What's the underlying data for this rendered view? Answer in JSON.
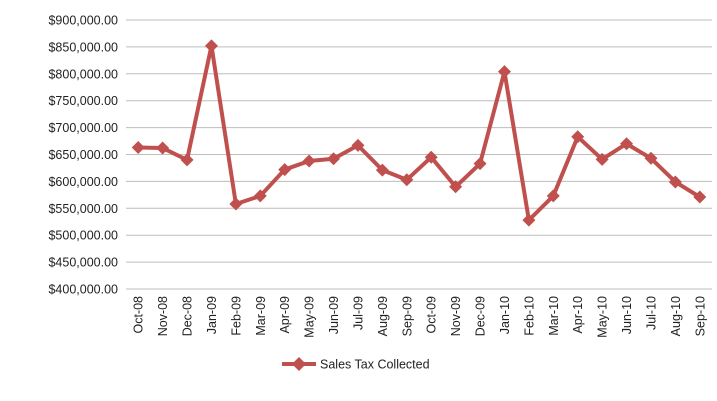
{
  "chart_data": {
    "type": "line",
    "x": [
      "Oct-08",
      "Nov-08",
      "Dec-08",
      "Jan-09",
      "Feb-09",
      "Mar-09",
      "Apr-09",
      "May-09",
      "Jun-09",
      "Jul-09",
      "Aug-09",
      "Sep-09",
      "Oct-09",
      "Nov-09",
      "Dec-09",
      "Jan-10",
      "Feb-10",
      "Mar-10",
      "Apr-10",
      "May-10",
      "Jun-10",
      "Jul-10",
      "Aug-10",
      "Sep-10"
    ],
    "series": [
      {
        "name": "Sales Tax Collected",
        "color": "#c0504d",
        "marker": "diamond",
        "values": [
          663000,
          662000,
          640000,
          852000,
          558000,
          573000,
          622000,
          638000,
          642000,
          667000,
          621000,
          603000,
          645000,
          590000,
          633000,
          804000,
          528000,
          573000,
          683000,
          641000,
          670000,
          643000,
          599000,
          571000
        ]
      }
    ],
    "y_ticks": [
      "$900,000.00",
      "$850,000.00",
      "$800,000.00",
      "$750,000.00",
      "$700,000.00",
      "$650,000.00",
      "$600,000.00",
      "$550,000.00",
      "$500,000.00",
      "$450,000.00",
      "$400,000.00"
    ],
    "ylim": [
      400000,
      900000
    ],
    "title": "",
    "xlabel": "",
    "ylabel": "",
    "grid": "horizontal",
    "legend": "bottom"
  }
}
